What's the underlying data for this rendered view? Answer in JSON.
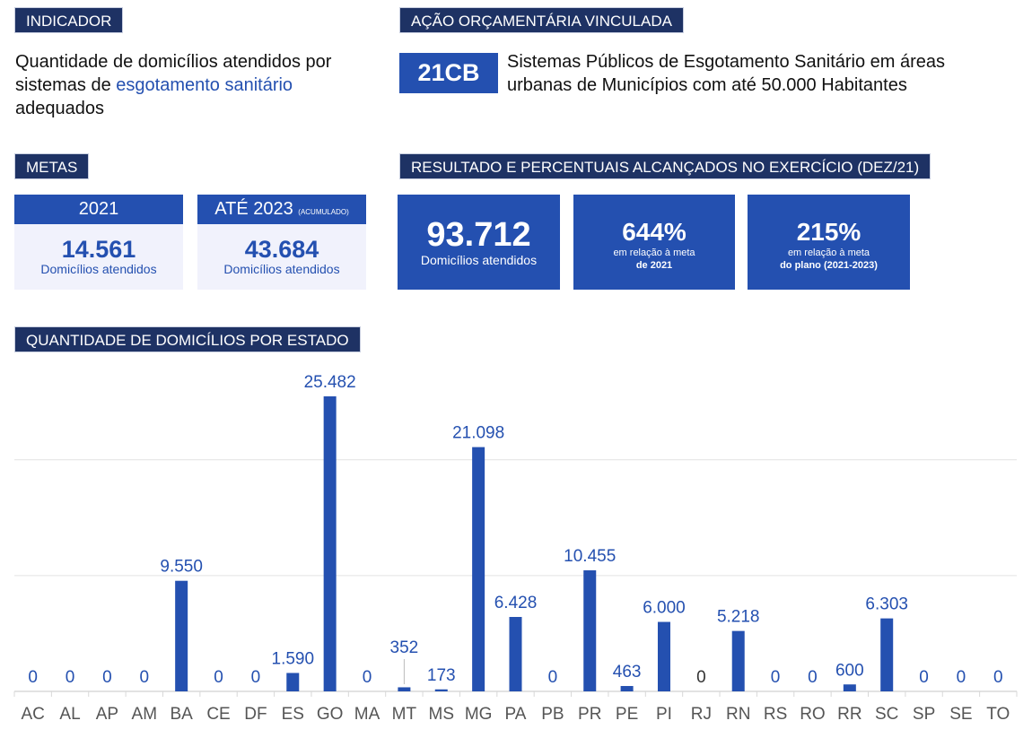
{
  "indicador": {
    "header": "INDICADOR",
    "text_before": "Quantidade de domicílios atendidos por sistemas de ",
    "text_highlight": "esgotamento sanitário",
    "text_after": " adequados"
  },
  "acao": {
    "header": "AÇÃO ORÇAMENTÁRIA VINCULADA",
    "code": "21CB",
    "description": "Sistemas Públicos de Esgotamento Sanitário em áreas urbanas de Municípios com até 50.000 Habitantes"
  },
  "metas": {
    "header": "METAS",
    "items": [
      {
        "label": "2021",
        "sublabel": "",
        "value": "14.561",
        "unit": "Domicílios atendidos"
      },
      {
        "label": "ATÉ 2023",
        "sublabel": "(ACUMULADO)",
        "value": "43.684",
        "unit": "Domicílios atendidos"
      }
    ]
  },
  "resultado": {
    "header": "RESULTADO E PERCENTUAIS ALCANÇADOS NO EXERCÍCIO (DEZ/21)",
    "total": {
      "value": "93.712",
      "label": "Domicílios atendidos"
    },
    "pct_2021": {
      "value": "644%",
      "line1": "em relação à meta",
      "line2": "de 2021"
    },
    "pct_plano": {
      "value": "215%",
      "line1": "em relação à meta",
      "line2": "do plano (2021-2023)"
    }
  },
  "chart_header": "QUANTIDADE DE DOMICÍLIOS POR ESTADO",
  "colors": {
    "navy": "#1e3264",
    "accent": "#2450b0",
    "light_box": "#f1f2fc",
    "zero_label_rj": "#333333"
  },
  "chart_data": {
    "type": "bar",
    "title": "QUANTIDADE DE DOMICÍLIOS POR ESTADO",
    "categories": [
      "AC",
      "AL",
      "AP",
      "AM",
      "BA",
      "CE",
      "DF",
      "ES",
      "GO",
      "MA",
      "MT",
      "MS",
      "MG",
      "PA",
      "PB",
      "PR",
      "PE",
      "PI",
      "RJ",
      "RN",
      "RS",
      "RO",
      "RR",
      "SC",
      "SP",
      "SE",
      "TO"
    ],
    "values": [
      0,
      0,
      0,
      0,
      9550,
      0,
      0,
      1590,
      25482,
      0,
      352,
      173,
      21098,
      6428,
      0,
      10455,
      463,
      6000,
      0,
      5218,
      0,
      0,
      600,
      6303,
      0,
      0,
      0
    ],
    "data_labels": [
      "0",
      "0",
      "0",
      "0",
      "9.550",
      "0",
      "0",
      "1.590",
      "25.482",
      "0",
      "352",
      "173",
      "21.098",
      "6.428",
      "0",
      "10.455",
      "463",
      "6.000",
      "0",
      "5.218",
      "0",
      "0",
      "600",
      "6.303",
      "0",
      "0",
      "0"
    ],
    "ylim": [
      0,
      30000
    ],
    "gridlines": [
      10000,
      20000
    ],
    "grid": true,
    "y_axis_labels_shown": false,
    "legend": "none"
  }
}
